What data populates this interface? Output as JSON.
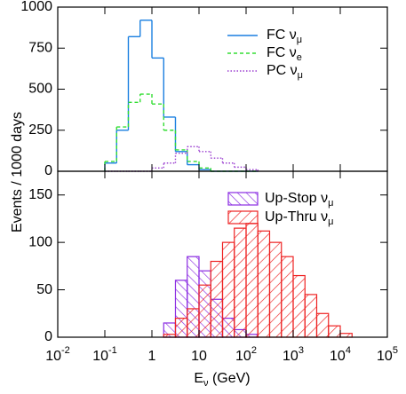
{
  "chart_data": [
    {
      "type": "histogram",
      "ylabel": "Events / 1000 days",
      "xlim": [
        0.01,
        100000
      ],
      "log_x": true,
      "ylim": [
        0,
        1000
      ],
      "yticks": [
        0,
        250,
        500,
        750,
        1000
      ],
      "bins": [
        0.1,
        0.178,
        0.316,
        0.562,
        1,
        1.78,
        3.16,
        5.62,
        10,
        17.8,
        31.6,
        56.2,
        100,
        178
      ],
      "legend": "upper right",
      "series": [
        {
          "name": "FC ν",
          "name_sub": "μ",
          "color": "#1a7fe0",
          "style": "solid",
          "values": [
            50,
            250,
            820,
            920,
            690,
            330,
            120,
            40,
            10,
            0,
            0,
            0,
            0
          ]
        },
        {
          "name": "FC ν",
          "name_sub": "e",
          "color": "#33dd33",
          "style": "dashed",
          "values": [
            60,
            270,
            420,
            470,
            410,
            250,
            130,
            60,
            20,
            0,
            0,
            0,
            0
          ]
        },
        {
          "name": "PC ν",
          "name_sub": "μ",
          "color": "#9b3fd0",
          "style": "dotted",
          "values": [
            0,
            0,
            0,
            0,
            20,
            50,
            110,
            150,
            120,
            80,
            50,
            25,
            10
          ]
        }
      ]
    },
    {
      "type": "hatched-histogram",
      "xlabel": "E",
      "xlabel_sub": "ν",
      "xlabel_rest": " (GeV)",
      "xlim": [
        0.01,
        100000
      ],
      "log_x": true,
      "xticks": [
        {
          "value": 0.01,
          "label": "10",
          "sup": "-2"
        },
        {
          "value": 0.1,
          "label": "10",
          "sup": "-1"
        },
        1,
        10,
        {
          "value": 100,
          "label": "10",
          "sup": "2"
        },
        {
          "value": 1000,
          "label": "10",
          "sup": "3"
        },
        {
          "value": 10000,
          "label": "10",
          "sup": "4"
        },
        {
          "value": 100000,
          "label": "10",
          "sup": "5"
        }
      ],
      "ylim": [
        0,
        175
      ],
      "yticks": [
        0,
        50,
        100,
        150
      ],
      "bins": [
        1.78,
        3.16,
        5.62,
        10,
        17.8,
        31.6,
        56.2,
        100,
        178,
        316,
        562,
        1000,
        1780,
        3160,
        5620,
        10000,
        17800
      ],
      "legend": "upper right",
      "series": [
        {
          "name": "Up-Stop ν",
          "name_sub": "μ",
          "color": "#8a2be2",
          "hatch": "back",
          "values": [
            15,
            60,
            85,
            70,
            40,
            20,
            8,
            3,
            0,
            0,
            0,
            0,
            0,
            0,
            0,
            0
          ]
        },
        {
          "name": "Up-Thru ν",
          "name_sub": "μ",
          "color": "#ee2222",
          "hatch": "forward",
          "values": [
            3,
            20,
            30,
            55,
            80,
            100,
            115,
            120,
            112,
            100,
            85,
            65,
            45,
            25,
            12,
            4
          ]
        }
      ]
    }
  ]
}
